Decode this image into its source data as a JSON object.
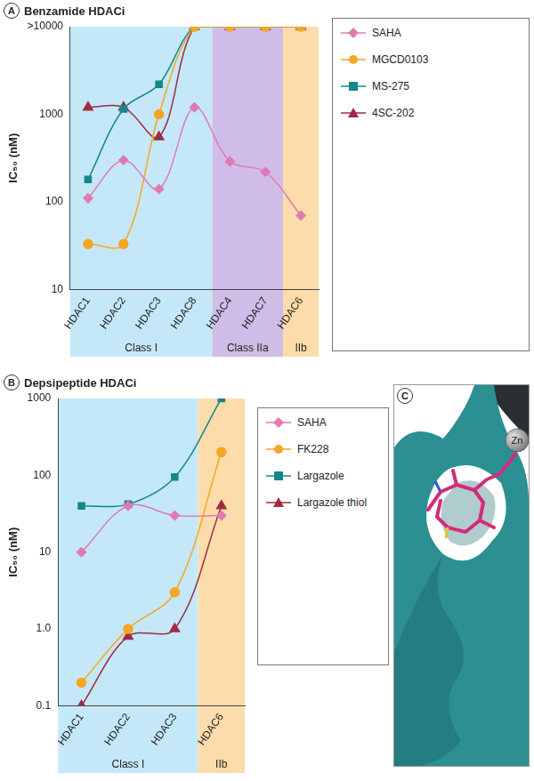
{
  "chart_data": [
    {
      "panel": "A",
      "type": "line",
      "title": "Benzamide HDACi",
      "y_label": "IC₅₀ (nM)",
      "log": "y",
      "grid": false,
      "legend": "right",
      "categories": [
        "HDAC1",
        "HDAC2",
        "HDAC3",
        "HDAC8",
        "HDAC4",
        "HDAC7",
        "HDAC6"
      ],
      "ylim": [
        10,
        10000
      ],
      "yticks": [
        10,
        100,
        1000,
        {
          "value": 10000,
          "label": ">10000"
        }
      ],
      "series": [
        {
          "name": "SAHA",
          "color": "#e07ab4",
          "marker": "diamond",
          "values": [
            110,
            300,
            140,
            1200,
            290,
            220,
            70
          ]
        },
        {
          "name": "MGCD0103",
          "color": "#f5a623",
          "marker": "circle",
          "values": [
            33,
            33,
            1000,
            10000,
            10000,
            10000,
            10000
          ]
        },
        {
          "name": "MS-275",
          "color": "#17868c",
          "marker": "square",
          "values": [
            180,
            1150,
            2200,
            10000,
            10000,
            10000,
            10000
          ]
        },
        {
          "name": "4SC-202",
          "color": "#a12a45",
          "marker": "triangle",
          "values": [
            1200,
            1200,
            550,
            10000,
            10000,
            10000,
            10000
          ]
        }
      ],
      "annotations": [
        {
          "text": "Class I",
          "categories": [
            "HDAC1",
            "HDAC2",
            "HDAC3",
            "HDAC8"
          ],
          "color": "#c4e8f7"
        },
        {
          "text": "Class IIa",
          "categories": [
            "HDAC4",
            "HDAC7"
          ],
          "color": "#cfbde8"
        },
        {
          "text": "IIb",
          "categories": [
            "HDAC6"
          ],
          "color": "#fcdcaa"
        }
      ]
    },
    {
      "panel": "B",
      "type": "line",
      "title": "Depsipeptide HDACi",
      "y_label": "IC₅₀ (nM)",
      "log": "y",
      "grid": false,
      "legend": "right",
      "categories": [
        "HDAC1",
        "HDAC2",
        "HDAC3",
        "HDAC6"
      ],
      "ylim": [
        0.1,
        1000
      ],
      "yticks": [
        0.1,
        {
          "value": 1,
          "label": "1.0"
        },
        10,
        100,
        1000
      ],
      "series": [
        {
          "name": "SAHA",
          "color": "#e07ab4",
          "marker": "diamond",
          "values": [
            10,
            40,
            30,
            30
          ]
        },
        {
          "name": "FK228",
          "color": "#f5a623",
          "marker": "circle",
          "values": [
            0.2,
            1.0,
            3,
            200
          ]
        },
        {
          "name": "Largazole",
          "color": "#17868c",
          "marker": "square",
          "values": [
            40,
            42,
            95,
            1000
          ]
        },
        {
          "name": "Largazole thiol",
          "color": "#a12a45",
          "marker": "triangle",
          "values": [
            0.1,
            0.8,
            1.0,
            40
          ]
        }
      ],
      "annotations": [
        {
          "text": "Class I",
          "categories": [
            "HDAC1",
            "HDAC2",
            "HDAC3"
          ],
          "color": "#c4e8f7"
        },
        {
          "text": "IIb",
          "categories": [
            "HDAC6"
          ],
          "color": "#fcdcaa"
        }
      ]
    }
  ],
  "panel_c": {
    "panel": "C",
    "labels": [
      "Zn"
    ]
  }
}
